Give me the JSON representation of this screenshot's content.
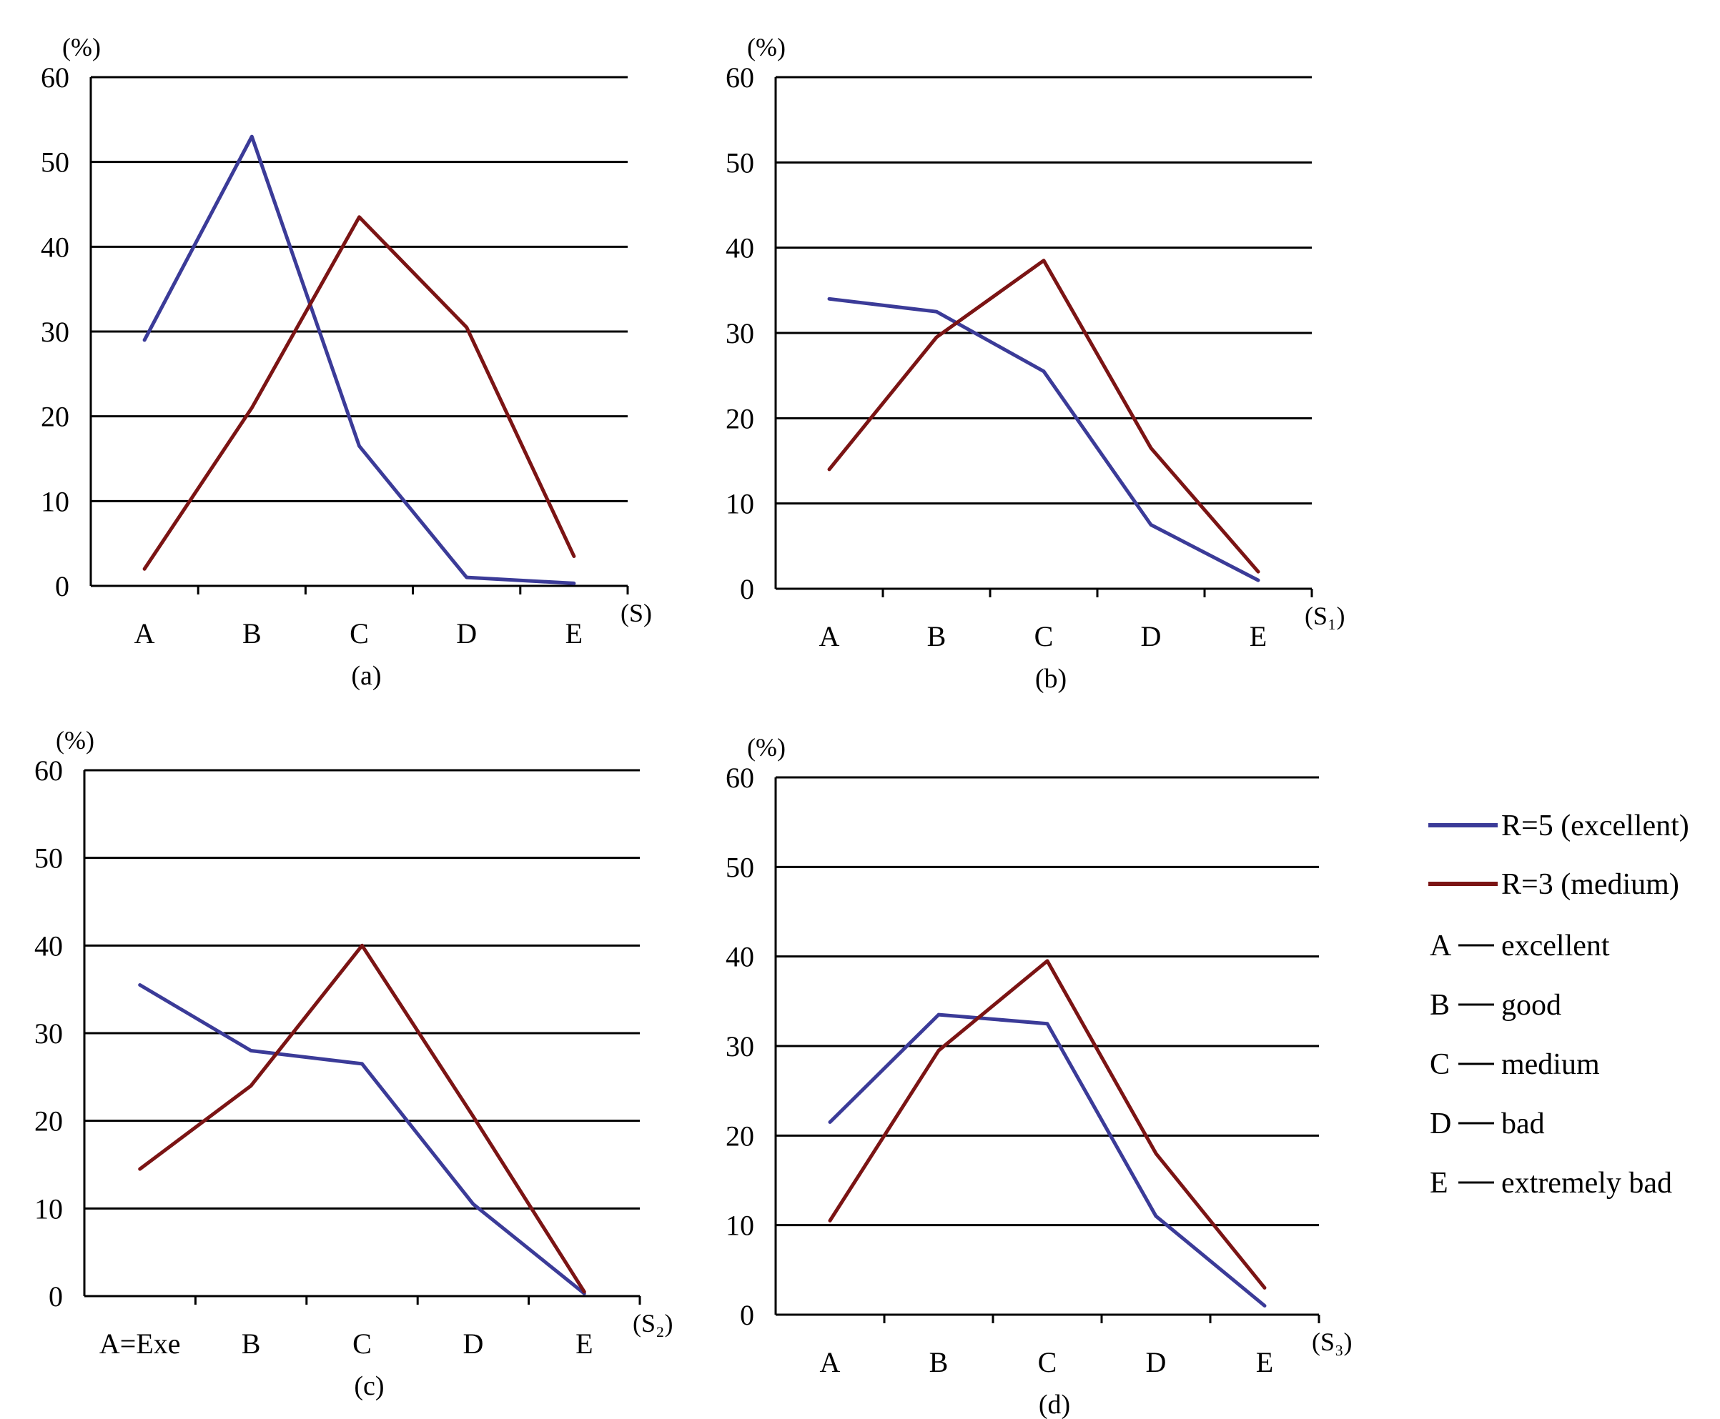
{
  "colors": {
    "series_a": "#3b3b98",
    "series_b": "#7b1414",
    "axis": "#000000"
  },
  "legend": {
    "series": [
      "R=5 (excellent)",
      "R=3 (medium)"
    ],
    "categories": [
      {
        "key": "A",
        "label": "excellent"
      },
      {
        "key": "B",
        "label": "good"
      },
      {
        "key": "C",
        "label": "medium"
      },
      {
        "key": "D",
        "label": "bad"
      },
      {
        "key": "E",
        "label": "extremely bad"
      }
    ]
  },
  "chart_data": [
    {
      "type": "line",
      "panel_label": "(a)",
      "y_unit": "(%)",
      "x_unit": "(S)",
      "categories": [
        "A",
        "B",
        "C",
        "D",
        "E"
      ],
      "yticks": [
        "0",
        "10",
        "20",
        "30",
        "40",
        "50",
        "60"
      ],
      "ylim": [
        0,
        60
      ],
      "grid": true,
      "series": [
        {
          "name": "R=5 (excellent)",
          "values": [
            29,
            53,
            16.5,
            1,
            0.3
          ]
        },
        {
          "name": "R=3 (medium)",
          "values": [
            2,
            21,
            43.5,
            30.5,
            3.5
          ]
        }
      ]
    },
    {
      "type": "line",
      "panel_label": "(b)",
      "y_unit": "(%)",
      "x_unit": "(S₁)",
      "categories": [
        "A",
        "B",
        "C",
        "D",
        "E"
      ],
      "yticks": [
        "0",
        "10",
        "20",
        "30",
        "40",
        "50",
        "60"
      ],
      "ylim": [
        0,
        60
      ],
      "grid": true,
      "series": [
        {
          "name": "R=5 (excellent)",
          "values": [
            34,
            32.5,
            25.5,
            7.5,
            1
          ]
        },
        {
          "name": "R=3 (medium)",
          "values": [
            14,
            29.5,
            38.5,
            16.5,
            2
          ]
        }
      ]
    },
    {
      "type": "line",
      "panel_label": "(c)",
      "y_unit": "(%)",
      "x_unit": "(S₂)",
      "categories": [
        "A=Exe",
        "B",
        "C",
        "D",
        "E"
      ],
      "yticks": [
        "0",
        "10",
        "20",
        "30",
        "40",
        "50",
        "60"
      ],
      "ylim": [
        0,
        60
      ],
      "grid": true,
      "series": [
        {
          "name": "R=5 (excellent)",
          "values": [
            35.5,
            28,
            26.5,
            10.5,
            0.3
          ]
        },
        {
          "name": "R=3 (medium)",
          "values": [
            14.5,
            24,
            40,
            20.5,
            0.5
          ]
        }
      ]
    },
    {
      "type": "line",
      "panel_label": "(d)",
      "y_unit": "(%)",
      "x_unit": "(S₃)",
      "categories": [
        "A",
        "B",
        "C",
        "D",
        "E"
      ],
      "yticks": [
        "0",
        "10",
        "20",
        "30",
        "40",
        "50",
        "60"
      ],
      "ylim": [
        0,
        60
      ],
      "grid": true,
      "series": [
        {
          "name": "R=5 (excellent)",
          "values": [
            21.5,
            33.5,
            32.5,
            11,
            1
          ]
        },
        {
          "name": "R=3 (medium)",
          "values": [
            10.5,
            29.5,
            39.5,
            18,
            3
          ]
        }
      ]
    }
  ]
}
